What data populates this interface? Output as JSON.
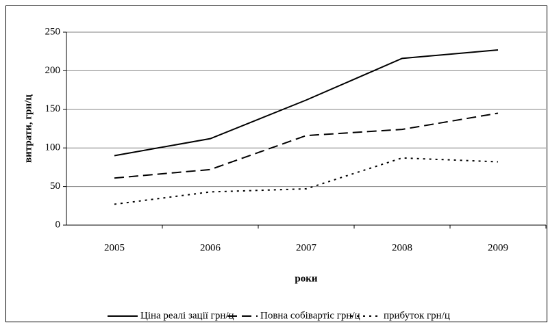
{
  "chart_data": {
    "type": "line",
    "categories": [
      "2005",
      "2006",
      "2007",
      "2008",
      "2009"
    ],
    "series": [
      {
        "name": "Ціна реалі зації грн/ц",
        "color": "#000000",
        "dash": "solid",
        "values": [
          90,
          112,
          162,
          216,
          227
        ]
      },
      {
        "name": "Повна собівартіс грн/ц",
        "color": "#000000",
        "dash": "dashed",
        "values": [
          61,
          72,
          116,
          124,
          145
        ]
      },
      {
        "name": "прибуток грн/ц",
        "color": "#000000",
        "dash": "dotted",
        "values": [
          27,
          43,
          47,
          87,
          82
        ]
      }
    ],
    "xlabel": "роки",
    "ylabel": "витрати, грн/ц",
    "ylim": [
      0,
      250
    ],
    "yticks": [
      0,
      50,
      100,
      150,
      200,
      250
    ],
    "grid": true,
    "legend": "bottom"
  }
}
